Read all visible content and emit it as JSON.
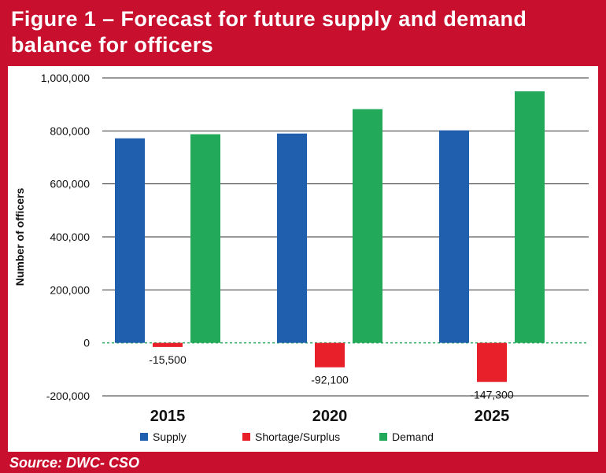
{
  "header": {
    "title_line1": "Figure 1 – Forecast for future supply and demand",
    "title_line2": "balance for officers"
  },
  "footer": {
    "source": "Source: DWC- CSO"
  },
  "colors": {
    "frame": "#c8102e",
    "supply": "#1f5fae",
    "shortage": "#e8202a",
    "demand": "#22a95a",
    "gridline": "#333333",
    "panel": "#ffffff"
  },
  "chart_data": {
    "type": "bar",
    "title": "Figure 1 – Forecast for future supply and demand balance for officers",
    "categories": [
      "2015",
      "2020",
      "2025"
    ],
    "series": [
      {
        "name": "Supply",
        "values": [
          772000,
          790000,
          802000
        ],
        "color": "#1f5fae"
      },
      {
        "name": "Shortage/Surplus",
        "values": [
          -15500,
          -92100,
          -147300
        ],
        "color": "#e8202a",
        "data_labels": [
          "-15,500",
          "-92,100",
          "-147,300"
        ]
      },
      {
        "name": "Demand",
        "values": [
          787500,
          882100,
          949300
        ],
        "color": "#22a95a"
      }
    ],
    "ylabel": "Number of officers",
    "xlabel": "",
    "ylim": [
      -200000,
      1000000
    ],
    "yticks": [
      -200000,
      0,
      200000,
      400000,
      600000,
      800000,
      1000000
    ],
    "ytick_labels": [
      "-200,000",
      "0",
      "200,000",
      "400,000",
      "600,000",
      "800,000",
      "1,000,000"
    ],
    "grid": true,
    "legend_position": "bottom"
  }
}
